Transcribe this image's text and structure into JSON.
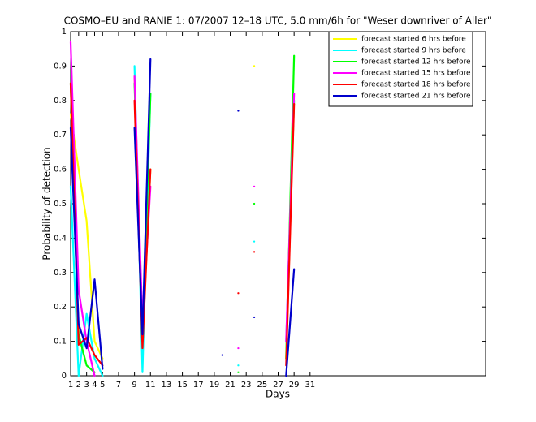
{
  "chart_data": {
    "type": "line",
    "title": "COSMO–EU and RANIE 1: 07/2007 12–18 UTC, 5.0 mm/6h for \"Weser downriver of Aller\"",
    "xlabel": "Days",
    "ylabel": "Probability of detection",
    "x": [
      1,
      2,
      3,
      4,
      5,
      6,
      7,
      8,
      9,
      10,
      11,
      12,
      13,
      14,
      15,
      16,
      17,
      18,
      19,
      20,
      21,
      22,
      23,
      24,
      25,
      26,
      27,
      28,
      29
    ],
    "xlim": [
      1,
      53
    ],
    "ylim": [
      0,
      1
    ],
    "xticks": [
      1,
      2,
      3,
      4,
      5,
      7,
      9,
      11,
      13,
      15,
      17,
      19,
      21,
      23,
      25,
      27,
      29,
      31
    ],
    "yticks": [
      0,
      0.1,
      0.2,
      0.3,
      0.4,
      0.5,
      0.6,
      0.7,
      0.8,
      0.9,
      1
    ],
    "legend": "upper right",
    "series": [
      {
        "name": "forecast started 6 hrs before",
        "color": "#ffff00",
        "values": [
          0.76,
          0.6,
          0.45,
          0.1,
          0.05,
          null,
          null,
          null,
          0.87,
          0.1,
          0.6,
          null,
          null,
          null,
          null,
          null,
          null,
          null,
          null,
          null,
          null,
          null,
          null,
          0.9,
          null,
          null,
          null,
          0.05,
          0.8
        ]
      },
      {
        "name": "forecast started 9 hrs before",
        "color": "#00ffff",
        "values": [
          0.55,
          0,
          0.18,
          0.05,
          0,
          null,
          null,
          null,
          0.9,
          0.01,
          0.82,
          null,
          null,
          null,
          null,
          null,
          null,
          null,
          null,
          null,
          null,
          0.03,
          null,
          0.39,
          null,
          null,
          null,
          0.1,
          0.8
        ]
      },
      {
        "name": "forecast started 12 hrs before",
        "color": "#00ff00",
        "values": [
          0.85,
          0.12,
          0.03,
          0.01,
          null,
          null,
          null,
          null,
          0.85,
          0.1,
          0.82,
          null,
          null,
          null,
          null,
          null,
          null,
          null,
          null,
          null,
          null,
          0.01,
          null,
          0.5,
          null,
          null,
          null,
          0.05,
          0.93
        ]
      },
      {
        "name": "forecast started 15 hrs before",
        "color": "#ff00ff",
        "values": [
          0.97,
          0.25,
          0.1,
          0,
          null,
          null,
          null,
          null,
          0.87,
          0.15,
          0.55,
          null,
          null,
          null,
          null,
          null,
          null,
          null,
          null,
          null,
          null,
          0.08,
          null,
          0.55,
          null,
          null,
          null,
          0.1,
          0.82
        ]
      },
      {
        "name": "forecast started 18 hrs before",
        "color": "#ff0000",
        "values": [
          0.85,
          0.09,
          0.11,
          0.06,
          0.03,
          null,
          null,
          null,
          0.8,
          0.08,
          0.6,
          null,
          null,
          null,
          null,
          null,
          null,
          null,
          null,
          null,
          null,
          0.24,
          null,
          0.36,
          null,
          null,
          null,
          0.03,
          0.79
        ]
      },
      {
        "name": "forecast started 21 hrs before",
        "color": "#0000cc",
        "values": [
          0.72,
          0.15,
          0.08,
          0.28,
          0.02,
          null,
          null,
          null,
          0.72,
          0.12,
          0.92,
          null,
          null,
          null,
          null,
          null,
          null,
          null,
          null,
          0.06,
          null,
          0.77,
          null,
          0.17,
          null,
          null,
          null,
          0,
          0.31
        ]
      }
    ]
  }
}
